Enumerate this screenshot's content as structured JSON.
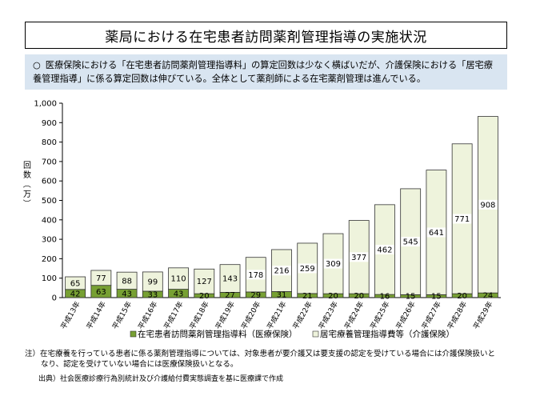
{
  "title": "薬局における在宅患者訪問薬剤管理指導の実施状況",
  "summary": {
    "bullet": "○",
    "text": "医療保険における「在宅患者訪問薬剤管理指導料」の算定回数は少なく横ばいだが、介護保険における「居宅療養管理指導」に係る算定回数は伸びている。全体として薬剤師による在宅薬剤管理は進んでいる。"
  },
  "chart_data": {
    "type": "bar",
    "stacked": true,
    "ylabel": "回数（万）",
    "ylim": [
      0,
      1000
    ],
    "yticks": [
      "0",
      "100",
      "200",
      "300",
      "400",
      "500",
      "600",
      "700",
      "800",
      "900",
      "1,000"
    ],
    "categories": [
      "平成13年",
      "平成14年",
      "平成15年",
      "平成16年",
      "平成17年",
      "平成18年",
      "平成19年",
      "平成20年",
      "平成21年",
      "平成22年",
      "平成23年",
      "平成24年",
      "平成25年",
      "平成26年",
      "平成27年",
      "平成28年",
      "平成29年"
    ],
    "series": [
      {
        "name": "在宅患者訪問薬剤管理指導料（医療保険）",
        "color": "#77a033",
        "values": [
          42,
          63,
          43,
          33,
          43,
          20,
          27,
          29,
          31,
          21,
          20,
          20,
          16,
          15,
          15,
          20,
          24
        ]
      },
      {
        "name": "居宅療養管理指導費等（介護保険）",
        "color": "#eef3dc",
        "values": [
          65,
          77,
          88,
          99,
          110,
          127,
          143,
          178,
          216,
          259,
          309,
          377,
          462,
          545,
          641,
          771,
          908
        ]
      }
    ],
    "legend_position": "bottom"
  },
  "note": {
    "line1": "注）在宅療養を行っている患者に係る薬剤管理指導については、対象患者が要介護又は要支援の認定を受けている場合には介護保険扱いと",
    "line2": "なり、認定を受けていない場合には医療保険扱いとなる。"
  },
  "source": "出典）社会医療診療行為別統計及び介護給付費実態調査を基に医療課で作成"
}
